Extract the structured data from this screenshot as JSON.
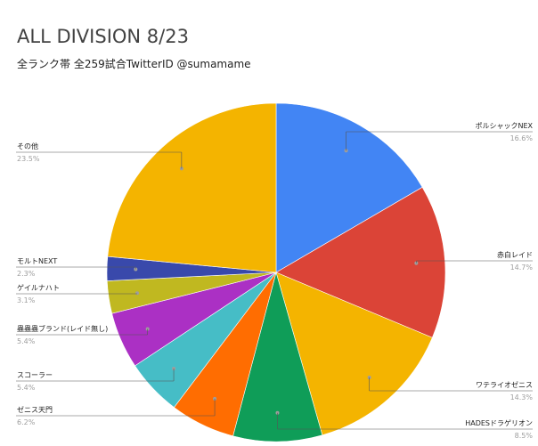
{
  "chart_data": {
    "type": "pie",
    "title": "ALL DIVISION 8/23",
    "subtitle": "全ランク帯 全259試合TwitterID @sumamame",
    "slices": [
      {
        "label": "ポルシャックNEX",
        "value": 16.6,
        "pct_label": "16.6%",
        "color": "#4285f4"
      },
      {
        "label": "赤白レイド",
        "value": 14.7,
        "pct_label": "14.7%",
        "color": "#db4437"
      },
      {
        "label": "ワテライオゼニス",
        "value": 14.3,
        "pct_label": "14.3%",
        "color": "#f4b400"
      },
      {
        "label": "HADESドラゲリオン",
        "value": 8.5,
        "pct_label": "8.5%",
        "color": "#0f9d58"
      },
      {
        "label": "ゼニス天門",
        "value": 6.2,
        "pct_label": "6.2%",
        "color": "#ff6d01"
      },
      {
        "label": "スコーラー",
        "value": 5.4,
        "pct_label": "5.4%",
        "color": "#46bdc6"
      },
      {
        "label": "蟲蟲蟲ブランド(レイド無し)",
        "value": 5.4,
        "pct_label": "5.4%",
        "color": "#ab30c4"
      },
      {
        "label": "ゲイルナハト",
        "value": 3.1,
        "pct_label": "3.1%",
        "color": "#c0b820"
      },
      {
        "label": "モルトNEXT",
        "value": 2.3,
        "pct_label": "2.3%",
        "color": "#3949ab"
      },
      {
        "label": "その他",
        "value": 23.5,
        "pct_label": "23.5%",
        "color": "#f4b400"
      }
    ]
  }
}
